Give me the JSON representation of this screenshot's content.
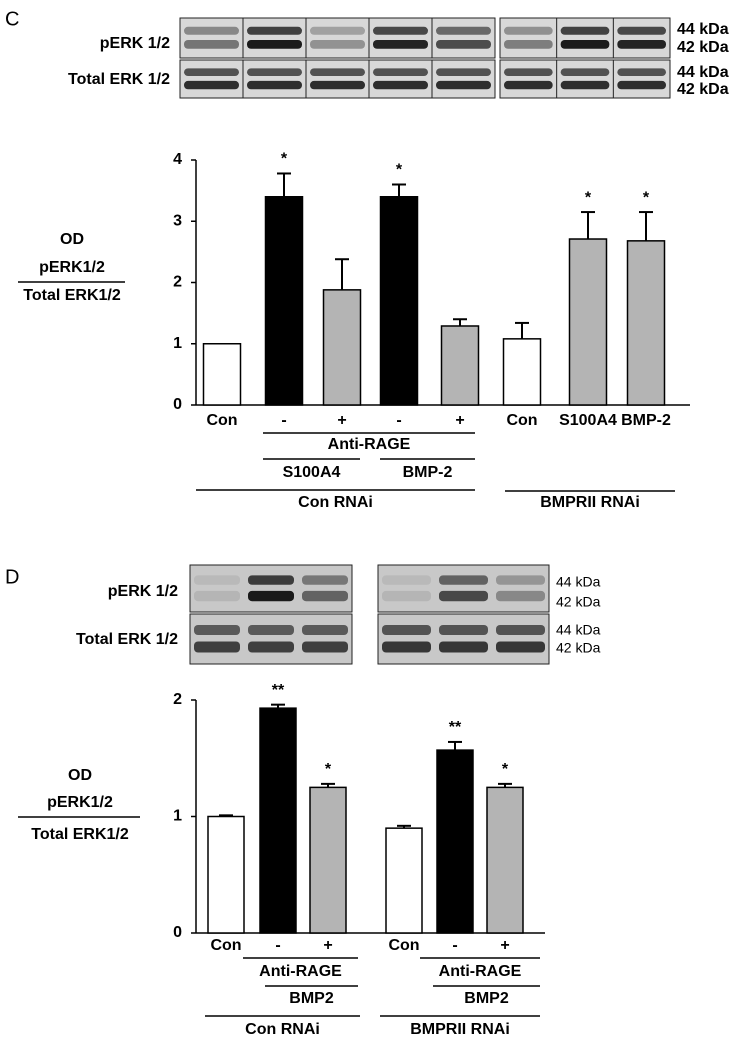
{
  "chart_data": [
    {
      "type": "bar",
      "panel": "C",
      "blot": {
        "rows": [
          "pERK 1/2",
          "Total ERK 1/2"
        ],
        "markers": [
          "44 kDa",
          "42 kDa",
          "44 kDa",
          "42 kDa"
        ]
      },
      "ylabel": [
        "OD",
        "pERK1/2",
        "Total ERK1/2"
      ],
      "categories": [
        "Con",
        "-",
        "+",
        "-",
        "+",
        "Con",
        "S100A4",
        "BMP-2"
      ],
      "values": [
        1.0,
        3.4,
        1.88,
        3.4,
        1.29,
        1.08,
        2.71,
        2.68
      ],
      "errors": [
        0,
        0.38,
        0.5,
        0.2,
        0.11,
        0.26,
        0.44,
        0.47
      ],
      "colors": [
        "#ffffff",
        "#000000",
        "#b4b4b4",
        "#000000",
        "#b4b4b4",
        "#ffffff",
        "#b4b4b4",
        "#b4b4b4"
      ],
      "significance": [
        null,
        "*",
        null,
        "*",
        null,
        null,
        "*",
        "*"
      ],
      "groups": [
        "Anti-RAGE",
        "S100A4",
        "BMP-2",
        "Con RNAi",
        "BMPRII RNAi"
      ],
      "ylim": [
        0,
        4
      ],
      "yticks": [
        0,
        1,
        2,
        3,
        4
      ]
    },
    {
      "type": "bar",
      "panel": "D",
      "blot": {
        "rows": [
          "pERK 1/2",
          "Total ERK 1/2"
        ],
        "markers": [
          "44 kDa",
          "42 kDa",
          "44 kDa",
          "42 kDa"
        ]
      },
      "ylabel": [
        "OD",
        "pERK1/2",
        "Total ERK1/2"
      ],
      "categories": [
        "Con",
        "-",
        "+",
        "Con",
        "-",
        "+"
      ],
      "values": [
        1.0,
        1.93,
        1.25,
        0.9,
        1.57,
        1.25
      ],
      "errors": [
        0.01,
        0.03,
        0.03,
        0.02,
        0.07,
        0.03
      ],
      "colors": [
        "#ffffff",
        "#000000",
        "#b4b4b4",
        "#ffffff",
        "#000000",
        "#b4b4b4"
      ],
      "significance": [
        null,
        "**",
        "*",
        null,
        "**",
        "*"
      ],
      "groups": [
        "Anti-RAGE",
        "BMP2",
        "Con RNAi",
        "Anti-RAGE",
        "BMP2",
        "BMPRII RNAi"
      ],
      "ylim": [
        0,
        2
      ],
      "yticks": [
        0,
        1,
        2
      ]
    }
  ]
}
